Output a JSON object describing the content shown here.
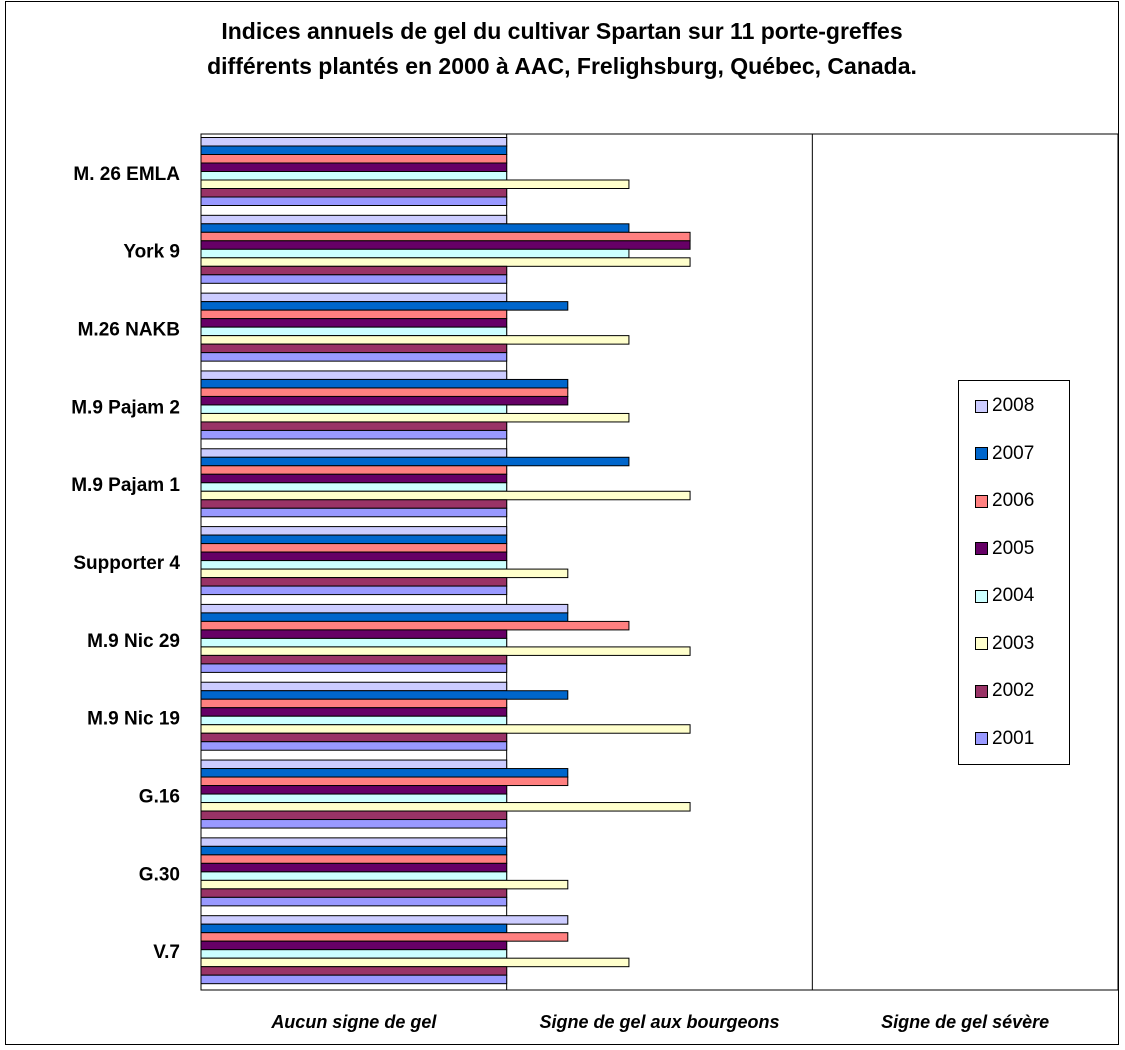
{
  "title": {
    "line1": "Indices annuels de gel du cultivar Spartan sur 11 porte-greffes",
    "line2": "différents plantés en 2000 à AAC, Frelighsburg, Québec, Canada."
  },
  "chart_data": {
    "type": "bar",
    "orientation": "horizontal",
    "categories": [
      "M. 26 EMLA",
      "York 9",
      "M.26 NAKB",
      "M.9 Pajam 2",
      "M.9 Pajam 1",
      "Supporter 4",
      "M.9 Nic 29",
      "M.9 Nic 19",
      "G.16",
      "G.30",
      "V.7"
    ],
    "x_tick_labels": [
      "Aucun signe de gel",
      "Signe de gel aux bourgeons",
      "Signe de gel sévère"
    ],
    "xlim": [
      0,
      3
    ],
    "grid": true,
    "legend_position": "right",
    "series": [
      {
        "name": "2008",
        "color": "#ccccff",
        "values": [
          1.0,
          1.0,
          1.0,
          1.0,
          1.0,
          1.0,
          1.2,
          1.0,
          1.0,
          1.0,
          1.2
        ]
      },
      {
        "name": "2007",
        "color": "#0066cc",
        "values": [
          1.0,
          1.4,
          1.2,
          1.2,
          1.4,
          1.0,
          1.2,
          1.2,
          1.2,
          1.0,
          1.0
        ]
      },
      {
        "name": "2006",
        "color": "#ff8080",
        "values": [
          1.0,
          1.6,
          1.0,
          1.2,
          1.0,
          1.0,
          1.4,
          1.0,
          1.2,
          1.0,
          1.2
        ]
      },
      {
        "name": "2005",
        "color": "#660066",
        "values": [
          1.0,
          1.6,
          1.0,
          1.2,
          1.0,
          1.0,
          1.0,
          1.0,
          1.0,
          1.0,
          1.0
        ]
      },
      {
        "name": "2004",
        "color": "#ccffff",
        "values": [
          1.0,
          1.4,
          1.0,
          1.0,
          1.0,
          1.0,
          1.0,
          1.0,
          1.0,
          1.0,
          1.0
        ]
      },
      {
        "name": "2003",
        "color": "#ffffcc",
        "values": [
          1.4,
          1.6,
          1.4,
          1.4,
          1.6,
          1.2,
          1.6,
          1.6,
          1.6,
          1.2,
          1.4
        ]
      },
      {
        "name": "2002",
        "color": "#993366",
        "values": [
          1.0,
          1.0,
          1.0,
          1.0,
          1.0,
          1.0,
          1.0,
          1.0,
          1.0,
          1.0,
          1.0
        ]
      },
      {
        "name": "2001",
        "color": "#9999ff",
        "values": [
          1.0,
          1.0,
          1.0,
          1.0,
          1.0,
          1.0,
          1.0,
          1.0,
          1.0,
          1.0,
          1.0
        ]
      }
    ],
    "legend_order": [
      "2008",
      "2007",
      "2006",
      "2005",
      "2004",
      "2003",
      "2002",
      "2001"
    ]
  }
}
